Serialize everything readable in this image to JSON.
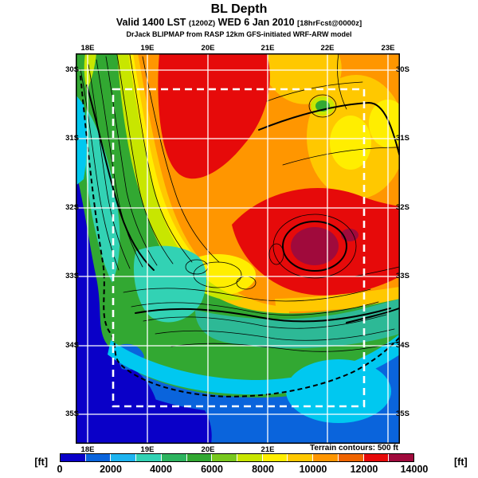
{
  "header": {
    "title": "BL Depth",
    "valid": {
      "prefix": "Valid 1400 LST",
      "init": "(1200Z)",
      "date": "WED 6 Jan 2010",
      "fcst": "[18hrFcst@0000z]"
    },
    "attribution": "DrJack BLIPMAP from RASP 12km GFS-initiated WRF-ARW model"
  },
  "map": {
    "lon_ticks_top": [
      "18E",
      "19E",
      "20E",
      "21E",
      "22E",
      "23E"
    ],
    "lon_ticks_bottom": [
      "18E",
      "19E",
      "20E",
      "21E"
    ],
    "lat_ticks_left": [
      "30S",
      "31S",
      "32S",
      "33S",
      "34S",
      "35S"
    ],
    "lat_ticks_right": [
      "30S",
      "31S",
      "32S",
      "33S",
      "34S",
      "35S"
    ],
    "terrain_note": "Terrain contours: 500 ft",
    "grid_color": "#ffffff",
    "inner_domain_style": "white dashed rectangle"
  },
  "colorbar": {
    "units_left": "[ft]",
    "units_right": "[ft]",
    "tick_labels": [
      "0",
      "2000",
      "4000",
      "6000",
      "8000",
      "10000",
      "12000",
      "14000"
    ],
    "min_ft": 0,
    "max_ft": 14000,
    "segment_ft": 1000,
    "colors": [
      "#0a00c8",
      "#0a64dc",
      "#1eb4f0",
      "#32d2b4",
      "#2db45f",
      "#32a832",
      "#78c81e",
      "#c8e600",
      "#ffee00",
      "#ffc800",
      "#ff9600",
      "#f06400",
      "#e60a0a",
      "#a00a3c"
    ]
  },
  "chart_data": {
    "type": "heatmap",
    "title": "BL Depth",
    "subtitle": "Valid 1400 LST (1200Z) WED 6 Jan 2010 [18hrFcst@0000z]",
    "source_note": "DrJack BLIPMAP from RASP 12km GFS-initiated WRF-ARW model",
    "units": "ft",
    "xlabel": "longitude (deg E)",
    "ylabel": "latitude (deg S)",
    "x_range_e": [
      18,
      23
    ],
    "y_range_s": [
      30,
      35
    ],
    "grid_interval_deg": 1,
    "colorbar_range_ft": [
      0,
      14000
    ],
    "colorbar_step_ft": 1000,
    "terrain_contour_interval_ft": 500,
    "grid_lon_e": [
      18,
      19,
      20,
      21,
      22,
      23
    ],
    "grid_lat_s": [
      30,
      31,
      32,
      33,
      34,
      35
    ],
    "values_ft_rows_north_to_south": [
      [
        5000,
        11500,
        12500,
        10500,
        10500,
        10500
      ],
      [
        2500,
        5000,
        12000,
        10500,
        8500,
        9000
      ],
      [
        500,
        3500,
        9500,
        10500,
        9000,
        10000
      ],
      [
        500,
        5000,
        8500,
        11500,
        13500,
        12500
      ],
      [
        500,
        1500,
        4500,
        4000,
        2500,
        1500
      ],
      [
        500,
        500,
        1500,
        1500,
        2500,
        1500
      ]
    ],
    "features": [
      "maximum >13000 ft (dark red spot) near 22E 33S",
      "secondary maximum >12000 ft near 20E 30S",
      "minimum <1000 ft over Atlantic Ocean west of 18.5E",
      "shallow 1000-3000 ft marine air along the south coast",
      "green 3000-6000 ft band over western mountains and coastal plain",
      "white dashed rectangle marks inner model domain",
      "thin black contours show terrain elevation every 500 ft"
    ]
  }
}
